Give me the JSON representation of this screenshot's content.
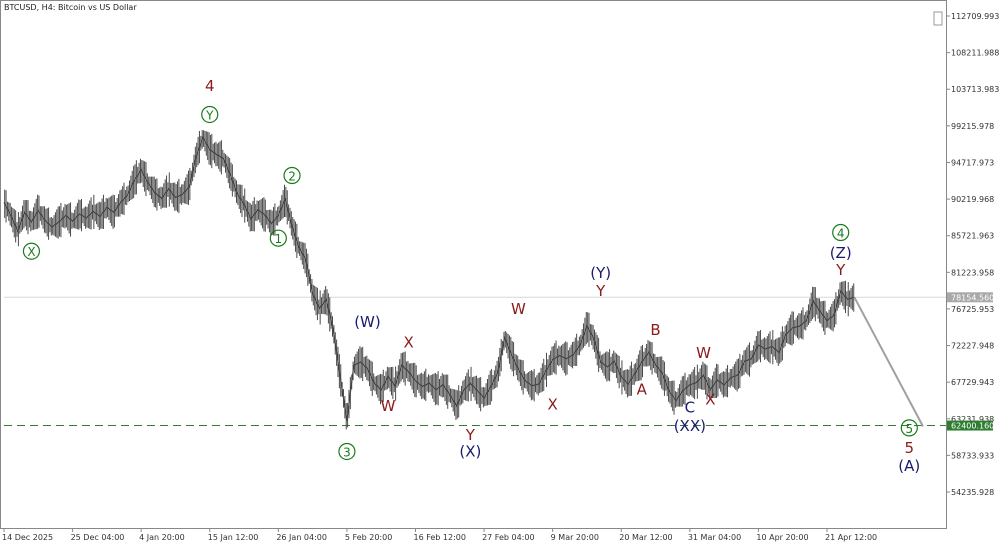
{
  "window": {
    "title": "BTCUSD, H4:  Bitcoin vs US Dollar",
    "scroll_button": "▯"
  },
  "chart_data": {
    "type": "candlestick",
    "symbol": "BTCUSD",
    "timeframe": "H4",
    "title": "BTCUSD, H4:  Bitcoin vs US Dollar",
    "ylim": [
      50000,
      116500
    ],
    "y_ticks": [
      "112709.993",
      "108211.988",
      "103713.983",
      "99215.978",
      "94717.973",
      "90219.968",
      "85721.963",
      "81223.958",
      "76725.953",
      "72227.948",
      "67729.943",
      "63231.938",
      "58733.933",
      "54235.928"
    ],
    "y_tick_values": [
      112709.993,
      108211.988,
      103713.983,
      99215.978,
      94717.973,
      90219.968,
      85721.963,
      81223.958,
      76725.953,
      72227.948,
      67729.943,
      63231.938,
      58733.933,
      54235.928
    ],
    "x_ticks": [
      "14 Dec 2025",
      "25 Dec 04:00",
      "4 Jan 20:00",
      "15 Jan 12:00",
      "26 Jan 04:00",
      "5 Feb 20:00",
      "16 Feb 12:00",
      "27 Feb 04:00",
      "9 Mar 20:00",
      "20 Mar 12:00",
      "31 Mar 04:00",
      "10 Apr 20:00",
      "21 Apr 12:00"
    ],
    "x_tick_index": [
      0,
      10,
      20,
      30,
      40,
      50,
      60,
      70,
      80,
      90,
      100,
      110,
      120
    ],
    "current_price": {
      "value": 78154.56,
      "label": "78154.560",
      "color": "#a8a8a8"
    },
    "support_level": {
      "value": 62400.16,
      "label": "62400.160",
      "color": "#2e7d32",
      "style": "dashed"
    },
    "price_path": [
      [
        0,
        89800
      ],
      [
        1,
        88200
      ],
      [
        2,
        86300
      ],
      [
        3,
        88600
      ],
      [
        4,
        87400
      ],
      [
        5,
        88800
      ],
      [
        6,
        87600
      ],
      [
        7,
        86800
      ],
      [
        8,
        87400
      ],
      [
        9,
        88200
      ],
      [
        10,
        87500
      ],
      [
        11,
        88400
      ],
      [
        12,
        87900
      ],
      [
        13,
        88700
      ],
      [
        14,
        88100
      ],
      [
        15,
        89200
      ],
      [
        16,
        88600
      ],
      [
        17,
        89800
      ],
      [
        18,
        90700
      ],
      [
        19,
        92500
      ],
      [
        20,
        93800
      ],
      [
        21,
        92200
      ],
      [
        22,
        91000
      ],
      [
        23,
        90300
      ],
      [
        24,
        91500
      ],
      [
        25,
        90400
      ],
      [
        26,
        90800
      ],
      [
        27,
        91700
      ],
      [
        28,
        95400
      ],
      [
        29,
        97800
      ],
      [
        30,
        96300
      ],
      [
        31,
        95700
      ],
      [
        32,
        95200
      ],
      [
        33,
        93200
      ],
      [
        34,
        90900
      ],
      [
        35,
        89600
      ],
      [
        36,
        87800
      ],
      [
        37,
        88900
      ],
      [
        38,
        88300
      ],
      [
        39,
        87200
      ],
      [
        40,
        88200
      ],
      [
        41,
        90200
      ],
      [
        42,
        86900
      ],
      [
        43,
        84300
      ],
      [
        44,
        82800
      ],
      [
        45,
        78600
      ],
      [
        46,
        76800
      ],
      [
        47,
        77900
      ],
      [
        48,
        74200
      ],
      [
        49,
        68500
      ],
      [
        50,
        63000
      ],
      [
        51,
        69800
      ],
      [
        52,
        70200
      ],
      [
        53,
        69400
      ],
      [
        54,
        67600
      ],
      [
        55,
        66800
      ],
      [
        56,
        68400
      ],
      [
        57,
        67300
      ],
      [
        58,
        69800
      ],
      [
        59,
        69000
      ],
      [
        60,
        67900
      ],
      [
        61,
        67200
      ],
      [
        62,
        67600
      ],
      [
        63,
        66800
      ],
      [
        64,
        67400
      ],
      [
        65,
        66200
      ],
      [
        66,
        64800
      ],
      [
        67,
        66700
      ],
      [
        68,
        67600
      ],
      [
        69,
        66700
      ],
      [
        70,
        65800
      ],
      [
        71,
        67200
      ],
      [
        72,
        68900
      ],
      [
        73,
        73200
      ],
      [
        74,
        71100
      ],
      [
        75,
        69300
      ],
      [
        76,
        67900
      ],
      [
        77,
        67300
      ],
      [
        78,
        67500
      ],
      [
        79,
        69100
      ],
      [
        80,
        70500
      ],
      [
        81,
        71000
      ],
      [
        82,
        70600
      ],
      [
        83,
        71100
      ],
      [
        84,
        72300
      ],
      [
        85,
        74600
      ],
      [
        86,
        73100
      ],
      [
        87,
        70200
      ],
      [
        88,
        69600
      ],
      [
        89,
        70300
      ],
      [
        90,
        68400
      ],
      [
        91,
        67500
      ],
      [
        92,
        68800
      ],
      [
        93,
        70200
      ],
      [
        94,
        71400
      ],
      [
        95,
        69900
      ],
      [
        96,
        68800
      ],
      [
        97,
        66600
      ],
      [
        98,
        65500
      ],
      [
        99,
        66700
      ],
      [
        100,
        67400
      ],
      [
        101,
        67700
      ],
      [
        102,
        68600
      ],
      [
        103,
        66800
      ],
      [
        104,
        68000
      ],
      [
        105,
        67400
      ],
      [
        106,
        68300
      ],
      [
        107,
        68600
      ],
      [
        108,
        70300
      ],
      [
        109,
        70600
      ],
      [
        110,
        72300
      ],
      [
        111,
        71800
      ],
      [
        112,
        72100
      ],
      [
        113,
        71400
      ],
      [
        114,
        73600
      ],
      [
        115,
        74400
      ],
      [
        116,
        74600
      ],
      [
        117,
        75300
      ],
      [
        118,
        77700
      ],
      [
        119,
        76400
      ],
      [
        120,
        75300
      ],
      [
        121,
        75900
      ],
      [
        122,
        78900
      ],
      [
        123,
        77900
      ],
      [
        124,
        78150
      ]
    ],
    "projection": {
      "from": [
        124,
        78150
      ],
      "to": [
        134,
        62300
      ],
      "color": "#a0a0a0"
    },
    "annotations": [
      {
        "text": "4",
        "color": "#8b1a1a",
        "x": 30,
        "y": 103500,
        "circled": false
      },
      {
        "text": "Y",
        "color": "#1b7a1b",
        "x": 30,
        "y": 100000,
        "circled": true
      },
      {
        "text": "2",
        "color": "#1b7a1b",
        "x": 42,
        "y": 92500,
        "circled": true
      },
      {
        "text": "1",
        "color": "#1b7a1b",
        "x": 40,
        "y": 84800,
        "circled": true
      },
      {
        "text": "X",
        "color": "#1b7a1b",
        "x": 4,
        "y": 83200,
        "circled": true
      },
      {
        "text": "3",
        "color": "#1b7a1b",
        "x": 50,
        "y": 58600,
        "circled": true
      },
      {
        "text": "(W)",
        "color": "#1a1a6e",
        "x": 53,
        "y": 74500,
        "circled": false
      },
      {
        "text": "X",
        "color": "#8b1a1a",
        "x": 59,
        "y": 72000,
        "circled": false
      },
      {
        "text": "W",
        "color": "#8b1a1a",
        "x": 56,
        "y": 64200,
        "circled": false
      },
      {
        "text": "Y",
        "color": "#8b1a1a",
        "x": 68,
        "y": 60600,
        "circled": false
      },
      {
        "text": "(X)",
        "color": "#1a1a6e",
        "x": 68,
        "y": 58600,
        "circled": false
      },
      {
        "text": "W",
        "color": "#8b1a1a",
        "x": 75,
        "y": 76100,
        "circled": false
      },
      {
        "text": "X",
        "color": "#8b1a1a",
        "x": 80,
        "y": 64400,
        "circled": false
      },
      {
        "text": "(Y)",
        "color": "#1a1a6e",
        "x": 87,
        "y": 80500,
        "circled": false
      },
      {
        "text": "Y",
        "color": "#8b1a1a",
        "x": 87,
        "y": 78300,
        "circled": false
      },
      {
        "text": "B",
        "color": "#8b1a1a",
        "x": 95,
        "y": 73500,
        "circled": false
      },
      {
        "text": "A",
        "color": "#8b1a1a",
        "x": 93,
        "y": 66200,
        "circled": false
      },
      {
        "text": "W",
        "color": "#8b1a1a",
        "x": 102,
        "y": 70700,
        "circled": false
      },
      {
        "text": "C",
        "color": "#1a1a6e",
        "x": 100,
        "y": 64000,
        "circled": false
      },
      {
        "text": "X",
        "color": "#8b1a1a",
        "x": 103,
        "y": 65000,
        "circled": false
      },
      {
        "text": "(XX)",
        "color": "#1a1a6e",
        "x": 100,
        "y": 61700,
        "circled": false
      },
      {
        "text": "4",
        "color": "#1b7a1b",
        "x": 122,
        "y": 85500,
        "circled": true
      },
      {
        "text": "(Z)",
        "color": "#1a1a6e",
        "x": 122,
        "y": 83000,
        "circled": false
      },
      {
        "text": "Y",
        "color": "#8b1a1a",
        "x": 122,
        "y": 80900,
        "circled": false
      },
      {
        "text": "5",
        "color": "#1b7a1b",
        "x": 132,
        "y": 61500,
        "circled": true
      },
      {
        "text": "5",
        "color": "#8b1a1a",
        "x": 132,
        "y": 59000,
        "circled": false
      },
      {
        "text": "(A)",
        "color": "#1a1a6e",
        "x": 132,
        "y": 56800,
        "circled": false
      }
    ]
  }
}
